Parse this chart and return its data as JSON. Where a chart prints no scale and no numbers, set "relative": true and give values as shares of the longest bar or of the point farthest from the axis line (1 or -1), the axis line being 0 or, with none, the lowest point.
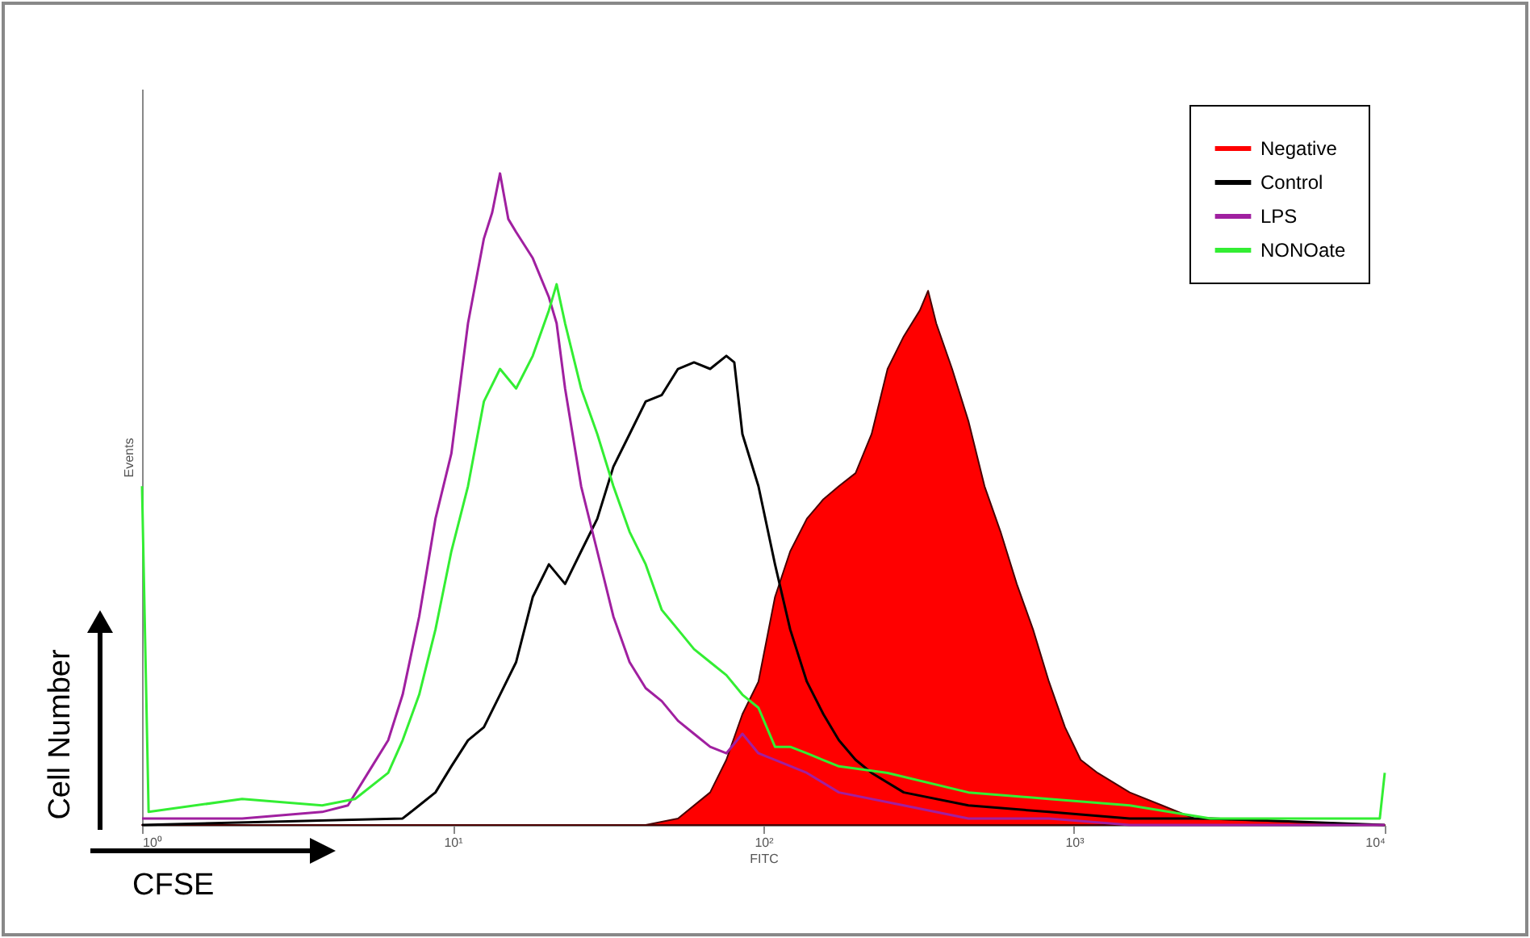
{
  "chart_data": {
    "type": "line",
    "xlabel": "FITC",
    "ylabel": "Events",
    "annotations": [
      "Cell Number",
      "CFSE"
    ],
    "relative": true,
    "log": "x",
    "xlim": [
      1,
      10000
    ],
    "xticks": [
      {
        "value": 1,
        "label": "10⁰"
      },
      {
        "value": 10,
        "label": "10¹"
      },
      {
        "value": 100,
        "label": "10²"
      },
      {
        "value": 1000,
        "label": "10³"
      },
      {
        "value": 10000,
        "label": "10⁴"
      }
    ],
    "legend": "top right",
    "series": [
      {
        "name": "Negative",
        "type": "area",
        "color": "#ff0000",
        "x": [
          1,
          41.8,
          53.1,
          67.4,
          76.0,
          85.6,
          96.4,
          109,
          122,
          138,
          156,
          175,
          198,
          223,
          251,
          283,
          319,
          339,
          360,
          405,
          457,
          515,
          580,
          654,
          738,
          830,
          935,
          1050,
          1190,
          1510,
          1920,
          2440,
          10000
        ],
        "values": [
          0,
          0,
          0.01,
          0.05,
          0.1,
          0.17,
          0.22,
          0.35,
          0.42,
          0.47,
          0.5,
          0.52,
          0.54,
          0.6,
          0.7,
          0.75,
          0.79,
          0.82,
          0.77,
          0.7,
          0.62,
          0.52,
          0.45,
          0.37,
          0.3,
          0.22,
          0.15,
          0.1,
          0.08,
          0.05,
          0.03,
          0.01,
          0
        ]
      },
      {
        "name": "Control",
        "color": "#000000",
        "x": [
          1,
          6.9,
          7.8,
          8.8,
          9.9,
          11.2,
          12.6,
          14.2,
          16.0,
          18.1,
          20.4,
          23.0,
          25.9,
          29.2,
          32.9,
          37.1,
          41.8,
          47.1,
          53.1,
          59.8,
          67.4,
          76.0,
          80.6,
          85.6,
          96.4,
          109,
          122,
          138,
          156,
          175,
          198,
          223,
          283,
          457,
          830,
          1510,
          2750,
          10000
        ],
        "values": [
          0,
          0.01,
          0.03,
          0.05,
          0.09,
          0.13,
          0.15,
          0.2,
          0.25,
          0.35,
          0.4,
          0.37,
          0.42,
          0.47,
          0.55,
          0.6,
          0.65,
          0.66,
          0.7,
          0.71,
          0.7,
          0.72,
          0.71,
          0.6,
          0.52,
          0.4,
          0.3,
          0.22,
          0.17,
          0.13,
          0.1,
          0.08,
          0.05,
          0.03,
          0.02,
          0.01,
          0.01,
          0
        ]
      },
      {
        "name": "LPS",
        "color": "#a020a0",
        "x": [
          1,
          1.15,
          2.1,
          3.8,
          4.6,
          5.5,
          6.2,
          6.9,
          7.8,
          8.8,
          9.9,
          11.2,
          12.6,
          13.4,
          14.2,
          15.1,
          16.0,
          18.1,
          20.4,
          21.6,
          23.0,
          25.9,
          29.2,
          32.9,
          37.1,
          41.8,
          47.1,
          53.1,
          59.8,
          67.4,
          76.0,
          85.6,
          96.4,
          109,
          138,
          175,
          283,
          457,
          830,
          1510,
          10000
        ],
        "values": [
          0.01,
          0.01,
          0.01,
          0.02,
          0.03,
          0.09,
          0.13,
          0.2,
          0.32,
          0.47,
          0.57,
          0.77,
          0.9,
          0.94,
          1,
          0.93,
          0.91,
          0.87,
          0.81,
          0.77,
          0.67,
          0.52,
          0.42,
          0.32,
          0.25,
          0.21,
          0.19,
          0.16,
          0.14,
          0.12,
          0.11,
          0.14,
          0.11,
          0.1,
          0.08,
          0.05,
          0.03,
          0.01,
          0.01,
          0,
          0
        ]
      },
      {
        "name": "NONOate",
        "color": "#33ee33",
        "x": [
          1,
          1.05,
          2.1,
          3.8,
          4.85,
          6.2,
          6.9,
          7.8,
          8.8,
          9.9,
          11.2,
          12.6,
          14.2,
          16.0,
          18.1,
          20.4,
          21.6,
          23.0,
          25.9,
          29.2,
          32.9,
          37.1,
          41.8,
          47.1,
          53.1,
          59.8,
          67.4,
          76.0,
          85.6,
          96.4,
          109,
          122,
          138,
          175,
          251,
          457,
          830,
          1510,
          2750,
          5000,
          9640,
          10000
        ],
        "values": [
          0.52,
          0.02,
          0.04,
          0.03,
          0.04,
          0.08,
          0.13,
          0.2,
          0.3,
          0.42,
          0.52,
          0.65,
          0.7,
          0.67,
          0.72,
          0.79,
          0.83,
          0.77,
          0.67,
          0.6,
          0.52,
          0.45,
          0.4,
          0.33,
          0.3,
          0.27,
          0.25,
          0.23,
          0.2,
          0.18,
          0.12,
          0.12,
          0.11,
          0.09,
          0.08,
          0.05,
          0.04,
          0.03,
          0.01,
          0.01,
          0.01,
          0.08
        ]
      }
    ]
  }
}
